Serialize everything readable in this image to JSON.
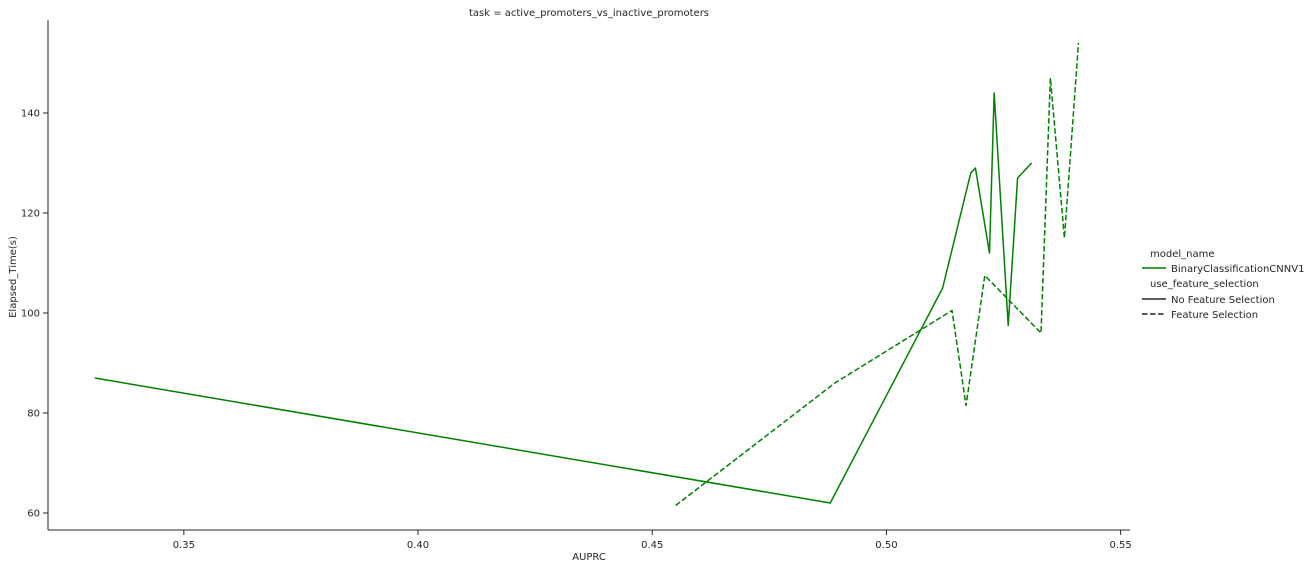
{
  "chart_data": {
    "type": "line",
    "title": "task = active_promoters_vs_inactive_promoters",
    "xlabel": "AUPRC",
    "ylabel": "Elapsed_Time(s)",
    "xlim": [
      0.321,
      0.552
    ],
    "ylim": [
      56.6,
      158.6
    ],
    "xticks": [
      0.35,
      0.4,
      0.45,
      0.5,
      0.55
    ],
    "xtick_labels": [
      "0.35",
      "0.40",
      "0.45",
      "0.50",
      "0.55"
    ],
    "yticks": [
      60,
      80,
      100,
      120,
      140
    ],
    "ytick_labels": [
      "60",
      "80",
      "100",
      "120",
      "140"
    ],
    "grid": false,
    "legend_position": "right",
    "legend": {
      "hue_title": "model_name",
      "hue_entries": [
        {
          "label": "BinaryClassificationCNNV1",
          "color": "#008000"
        }
      ],
      "style_title": "use_feature_selection",
      "style_entries": [
        {
          "label": "No Feature Selection",
          "dash": "solid"
        },
        {
          "label": "Feature Selection",
          "dash": "dashed"
        }
      ]
    },
    "series": [
      {
        "key": "no-feature-selection",
        "color": "#008000",
        "dash": "solid",
        "points": [
          [
            0.331,
            87.0
          ],
          [
            0.488,
            62.0
          ],
          [
            0.512,
            105.0
          ],
          [
            0.518,
            128.0
          ],
          [
            0.519,
            129.0
          ],
          [
            0.522,
            112.0
          ],
          [
            0.523,
            144.0
          ],
          [
            0.526,
            97.5
          ],
          [
            0.528,
            127.0
          ],
          [
            0.531,
            130.0
          ]
        ]
      },
      {
        "key": "feature-selection",
        "color": "#008000",
        "dash": "dashed",
        "points": [
          [
            0.455,
            61.5
          ],
          [
            0.489,
            86.0
          ],
          [
            0.514,
            100.5
          ],
          [
            0.517,
            81.5
          ],
          [
            0.521,
            107.5
          ],
          [
            0.533,
            96.0
          ],
          [
            0.535,
            147.0
          ],
          [
            0.538,
            115.0
          ],
          [
            0.541,
            154.0
          ]
        ]
      }
    ]
  }
}
